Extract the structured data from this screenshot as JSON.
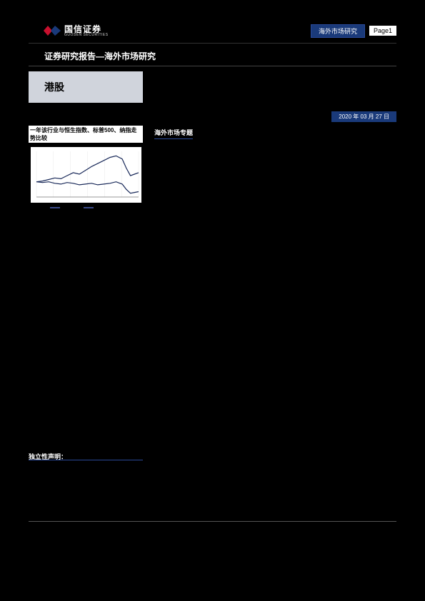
{
  "header": {
    "logo_cn": "国信证券",
    "logo_en": "GUOSEN SECURITIES",
    "logo_colors": {
      "left": "#c8102e",
      "right": "#1a3a7a"
    },
    "category": "海外市场研究",
    "page_label": "Page1"
  },
  "report_title": "证券研究报告—海外市场研究",
  "stock_tag": "港股",
  "date_strip": "2020 年 03 月 27 日",
  "left_column": {
    "chart_caption": "一年该行业与恒生指数、标普500、纳指走势比较",
    "chart": {
      "type": "line",
      "background_color": "#ffffff",
      "xlim": [
        0,
        100
      ],
      "ylim": [
        80,
        140
      ],
      "grid_color": "#e8e8e8",
      "axis_color": "#333333",
      "series": [
        {
          "name": "series_a",
          "color": "#1a2a5a",
          "width": 1.2,
          "points": [
            [
              0,
              100
            ],
            [
              6,
              101
            ],
            [
              12,
              103
            ],
            [
              18,
              105
            ],
            [
              24,
              104
            ],
            [
              30,
              108
            ],
            [
              36,
              112
            ],
            [
              42,
              110
            ],
            [
              48,
              115
            ],
            [
              54,
              120
            ],
            [
              60,
              124
            ],
            [
              66,
              128
            ],
            [
              72,
              132
            ],
            [
              78,
              134
            ],
            [
              84,
              130
            ],
            [
              88,
              118
            ],
            [
              92,
              108
            ],
            [
              96,
              110
            ],
            [
              100,
              112
            ]
          ]
        },
        {
          "name": "series_b",
          "color": "#1a2a5a",
          "width": 1.2,
          "points": [
            [
              0,
              100
            ],
            [
              6,
              99
            ],
            [
              12,
              100
            ],
            [
              18,
              98
            ],
            [
              24,
              97
            ],
            [
              30,
              99
            ],
            [
              36,
              98
            ],
            [
              42,
              96
            ],
            [
              48,
              97
            ],
            [
              54,
              98
            ],
            [
              60,
              96
            ],
            [
              66,
              97
            ],
            [
              72,
              98
            ],
            [
              78,
              100
            ],
            [
              84,
              97
            ],
            [
              88,
              90
            ],
            [
              92,
              85
            ],
            [
              96,
              86
            ],
            [
              100,
              87
            ]
          ]
        }
      ]
    },
    "legend": [
      {
        "color": "#3a4a8a",
        "label": ""
      },
      {
        "color": "#3a4a8a",
        "label": ""
      }
    ]
  },
  "right_column": {
    "section_tag": "海外市场专题"
  },
  "independence": {
    "label": "独立性声明："
  },
  "colors": {
    "page_bg": "#000000",
    "pill_bg": "#1a3a7a",
    "tag_box_bg": "#d0d4dc",
    "rule": "#444444"
  }
}
